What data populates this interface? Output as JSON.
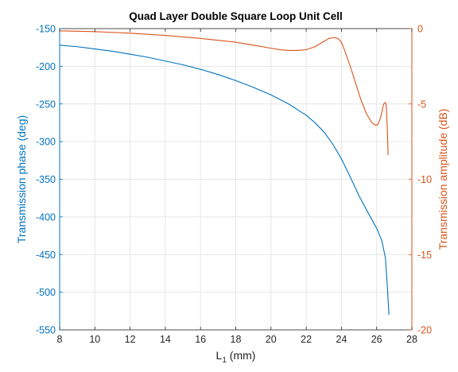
{
  "chart_data": {
    "type": "line",
    "title": "Quad Layer Double Square Loop Unit Cell",
    "xlabel_main": "L",
    "xlabel_sub": "1",
    "xlabel_unit": " (mm)",
    "ylabel_left": "Transmission phase (deg)",
    "ylabel_right": "Transmission amplitude (dB)",
    "xlim": [
      8,
      28
    ],
    "ylim_left": [
      -550,
      -150
    ],
    "ylim_right": [
      -20,
      0
    ],
    "xticks": [
      8,
      10,
      12,
      14,
      16,
      18,
      20,
      22,
      24,
      26,
      28
    ],
    "yticks_left": [
      -150,
      -200,
      -250,
      -300,
      -350,
      -400,
      -450,
      -500,
      -550
    ],
    "yticks_right": [
      0,
      -5,
      -10,
      -15,
      -20
    ],
    "grid": true,
    "colors": {
      "left": "#0072BD",
      "right": "#D95319",
      "grid": "#e6e6e6",
      "axes": "#262626"
    },
    "series": [
      {
        "axis": "left",
        "x": [
          8,
          9,
          10,
          11,
          12,
          13,
          14,
          15,
          16,
          17,
          18,
          19,
          20,
          21,
          22,
          22.5,
          23,
          23.5,
          24,
          24.5,
          25,
          25.5,
          26,
          26.3,
          26.5,
          26.6,
          26.7
        ],
        "values": [
          -172,
          -174,
          -177,
          -180,
          -184,
          -188,
          -193,
          -198,
          -204,
          -211,
          -219,
          -228,
          -238,
          -250,
          -265,
          -275,
          -287,
          -303,
          -323,
          -347,
          -372,
          -394,
          -415,
          -432,
          -455,
          -490,
          -530
        ]
      },
      {
        "axis": "right",
        "x": [
          8,
          10,
          12,
          14,
          16,
          18,
          19,
          20,
          20.5,
          21,
          21.5,
          22,
          22.5,
          23,
          23.3,
          23.6,
          23.8,
          24,
          24.2,
          24.5,
          24.8,
          25.1,
          25.4,
          25.7,
          25.9,
          26.05,
          26.2,
          26.3,
          26.4,
          26.5,
          26.55,
          26.6,
          26.65
        ],
        "values": [
          -0.15,
          -0.2,
          -0.3,
          -0.45,
          -0.65,
          -0.9,
          -1.1,
          -1.3,
          -1.4,
          -1.45,
          -1.45,
          -1.4,
          -1.2,
          -0.85,
          -0.65,
          -0.6,
          -0.65,
          -0.9,
          -1.5,
          -2.5,
          -3.6,
          -4.7,
          -5.6,
          -6.2,
          -6.4,
          -6.4,
          -6.0,
          -5.5,
          -5.0,
          -4.9,
          -5.2,
          -6.5,
          -8.4
        ]
      }
    ]
  }
}
